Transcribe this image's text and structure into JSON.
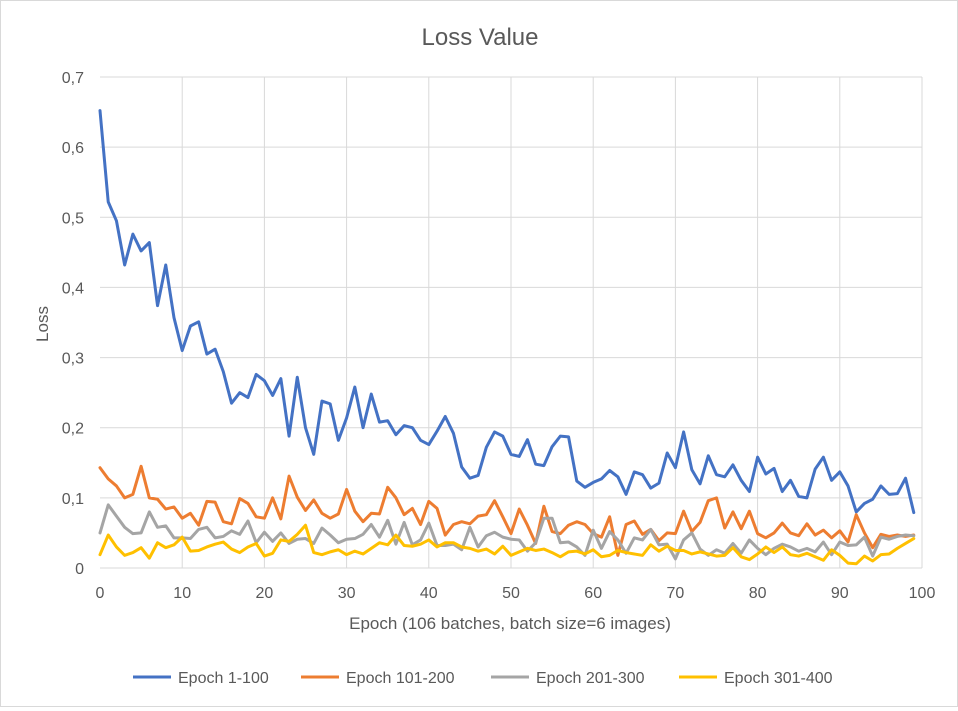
{
  "chart_data": {
    "type": "line",
    "title": "Loss Value",
    "xlabel": "Epoch (106 batches, batch size=6 images)",
    "ylabel": "Loss",
    "xlim": [
      0,
      100
    ],
    "ylim": [
      0,
      0.7
    ],
    "x_ticks": [
      "0",
      "10",
      "20",
      "30",
      "40",
      "50",
      "60",
      "70",
      "80",
      "90",
      "100"
    ],
    "y_ticks": [
      "0",
      "0,1",
      "0,2",
      "0,3",
      "0,4",
      "0,5",
      "0,6",
      "0,7"
    ],
    "grid": true,
    "legend_position": "bottom",
    "x": [
      0,
      1,
      2,
      3,
      4,
      5,
      6,
      7,
      8,
      9,
      10,
      11,
      12,
      13,
      14,
      15,
      16,
      17,
      18,
      19,
      20,
      21,
      22,
      23,
      24,
      25,
      26,
      27,
      28,
      29,
      30,
      31,
      32,
      33,
      34,
      35,
      36,
      37,
      38,
      39,
      40,
      41,
      42,
      43,
      44,
      45,
      46,
      47,
      48,
      49,
      50,
      51,
      52,
      53,
      54,
      55,
      56,
      57,
      58,
      59,
      60,
      61,
      62,
      63,
      64,
      65,
      66,
      67,
      68,
      69,
      70,
      71,
      72,
      73,
      74,
      75,
      76,
      77,
      78,
      79,
      80,
      81,
      82,
      83,
      84,
      85,
      86,
      87,
      88,
      89,
      90,
      91,
      92,
      93,
      94,
      95,
      96,
      97,
      98,
      99
    ],
    "series": [
      {
        "name": "Epoch 1-100",
        "color": "#4472c4",
        "values": [
          0.652,
          0.522,
          0.495,
          0.432,
          0.476,
          0.452,
          0.464,
          0.374,
          0.432,
          0.357,
          0.31,
          0.345,
          0.351,
          0.305,
          0.312,
          0.28,
          0.235,
          0.25,
          0.243,
          0.276,
          0.267,
          0.246,
          0.27,
          0.188,
          0.272,
          0.2,
          0.162,
          0.238,
          0.234,
          0.182,
          0.214,
          0.258,
          0.2,
          0.248,
          0.208,
          0.21,
          0.19,
          0.203,
          0.2,
          0.182,
          0.176,
          0.195,
          0.216,
          0.192,
          0.144,
          0.128,
          0.132,
          0.172,
          0.194,
          0.188,
          0.162,
          0.159,
          0.183,
          0.148,
          0.146,
          0.173,
          0.188,
          0.187,
          0.124,
          0.115,
          0.122,
          0.127,
          0.139,
          0.13,
          0.105,
          0.137,
          0.133,
          0.114,
          0.121,
          0.164,
          0.143,
          0.194,
          0.14,
          0.12,
          0.16,
          0.133,
          0.13,
          0.147,
          0.125,
          0.109,
          0.158,
          0.134,
          0.142,
          0.109,
          0.125,
          0.102,
          0.1,
          0.141,
          0.158,
          0.125,
          0.137,
          0.117,
          0.08,
          0.092,
          0.098,
          0.117,
          0.105,
          0.106,
          0.128,
          0.079
        ]
      },
      {
        "name": "Epoch 101-200",
        "color": "#ed7d31",
        "values": [
          0.143,
          0.127,
          0.117,
          0.1,
          0.105,
          0.145,
          0.1,
          0.098,
          0.084,
          0.087,
          0.071,
          0.078,
          0.061,
          0.095,
          0.094,
          0.066,
          0.063,
          0.099,
          0.092,
          0.073,
          0.071,
          0.1,
          0.07,
          0.131,
          0.101,
          0.082,
          0.097,
          0.078,
          0.071,
          0.077,
          0.112,
          0.081,
          0.066,
          0.078,
          0.077,
          0.115,
          0.1,
          0.076,
          0.085,
          0.062,
          0.095,
          0.085,
          0.047,
          0.062,
          0.066,
          0.063,
          0.074,
          0.076,
          0.096,
          0.073,
          0.049,
          0.084,
          0.061,
          0.035,
          0.088,
          0.052,
          0.049,
          0.061,
          0.066,
          0.062,
          0.049,
          0.044,
          0.073,
          0.018,
          0.062,
          0.067,
          0.048,
          0.055,
          0.039,
          0.05,
          0.049,
          0.081,
          0.052,
          0.065,
          0.096,
          0.1,
          0.057,
          0.08,
          0.056,
          0.081,
          0.049,
          0.043,
          0.05,
          0.064,
          0.05,
          0.046,
          0.063,
          0.047,
          0.054,
          0.043,
          0.053,
          0.037,
          0.076,
          0.05,
          0.029,
          0.048,
          0.045,
          0.047,
          0.045,
          0.047
        ]
      },
      {
        "name": "Epoch 201-300",
        "color": "#a5a5a5",
        "values": [
          0.05,
          0.09,
          0.074,
          0.058,
          0.049,
          0.05,
          0.08,
          0.058,
          0.06,
          0.043,
          0.043,
          0.042,
          0.055,
          0.058,
          0.043,
          0.045,
          0.053,
          0.048,
          0.067,
          0.036,
          0.051,
          0.038,
          0.05,
          0.035,
          0.041,
          0.042,
          0.035,
          0.057,
          0.047,
          0.036,
          0.041,
          0.042,
          0.048,
          0.062,
          0.044,
          0.068,
          0.034,
          0.065,
          0.033,
          0.04,
          0.064,
          0.032,
          0.032,
          0.034,
          0.026,
          0.058,
          0.03,
          0.046,
          0.051,
          0.044,
          0.041,
          0.04,
          0.024,
          0.036,
          0.071,
          0.071,
          0.036,
          0.037,
          0.03,
          0.018,
          0.054,
          0.028,
          0.052,
          0.04,
          0.021,
          0.043,
          0.04,
          0.055,
          0.033,
          0.034,
          0.013,
          0.04,
          0.05,
          0.027,
          0.018,
          0.026,
          0.021,
          0.035,
          0.021,
          0.04,
          0.028,
          0.019,
          0.028,
          0.034,
          0.03,
          0.024,
          0.028,
          0.023,
          0.037,
          0.019,
          0.037,
          0.032,
          0.033,
          0.044,
          0.017,
          0.044,
          0.041,
          0.045,
          0.047,
          0.046
        ]
      },
      {
        "name": "Epoch 301-400",
        "color": "#ffc000",
        "values": [
          0.019,
          0.047,
          0.03,
          0.018,
          0.022,
          0.029,
          0.014,
          0.036,
          0.029,
          0.033,
          0.044,
          0.024,
          0.025,
          0.03,
          0.034,
          0.037,
          0.027,
          0.022,
          0.03,
          0.035,
          0.017,
          0.021,
          0.04,
          0.038,
          0.048,
          0.061,
          0.022,
          0.019,
          0.023,
          0.026,
          0.019,
          0.024,
          0.02,
          0.028,
          0.036,
          0.033,
          0.047,
          0.032,
          0.031,
          0.034,
          0.04,
          0.03,
          0.036,
          0.036,
          0.03,
          0.028,
          0.024,
          0.027,
          0.02,
          0.031,
          0.018,
          0.023,
          0.028,
          0.025,
          0.027,
          0.022,
          0.016,
          0.023,
          0.024,
          0.02,
          0.026,
          0.016,
          0.018,
          0.025,
          0.022,
          0.02,
          0.018,
          0.033,
          0.024,
          0.031,
          0.025,
          0.025,
          0.02,
          0.023,
          0.02,
          0.017,
          0.018,
          0.029,
          0.016,
          0.012,
          0.02,
          0.03,
          0.022,
          0.03,
          0.019,
          0.017,
          0.021,
          0.016,
          0.011,
          0.026,
          0.018,
          0.007,
          0.006,
          0.017,
          0.01,
          0.019,
          0.02,
          0.028,
          0.035,
          0.042
        ]
      }
    ]
  }
}
